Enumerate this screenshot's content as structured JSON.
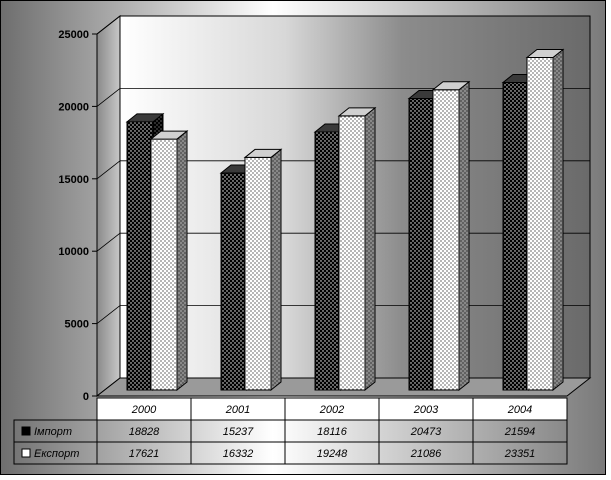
{
  "chart_data": {
    "type": "bar",
    "title": "",
    "xlabel": "",
    "ylabel": "",
    "categories": [
      "2000",
      "2001",
      "2002",
      "2003",
      "2004"
    ],
    "series": [
      {
        "name": "Імпорт",
        "values": [
          18828,
          15237,
          18116,
          20473,
          21594
        ],
        "color": "#000000",
        "pattern": "dots-on-black"
      },
      {
        "name": "Експорт",
        "values": [
          17621,
          16332,
          19248,
          21086,
          23351
        ],
        "color": "#ffffff",
        "pattern": "dots-on-white"
      }
    ],
    "ylim": [
      0,
      25000
    ],
    "yticks": [
      "0",
      "5000",
      "10000",
      "15000",
      "20000",
      "25000"
    ],
    "grid": true,
    "legend": "data-table-left",
    "data_table": true,
    "style": "3d-clustered-column"
  }
}
